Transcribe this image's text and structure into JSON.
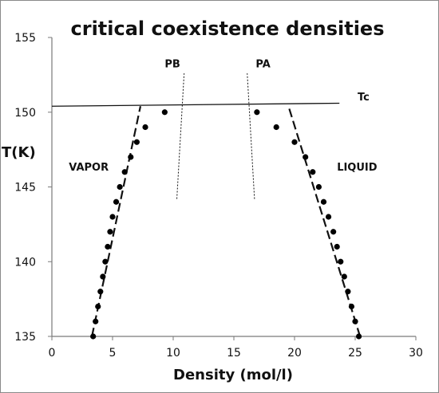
{
  "chart_data": {
    "type": "scatter",
    "title": "critical coexistence densities",
    "xlabel": "Density (mol/l)",
    "ylabel": "T(K)",
    "xlim": [
      0,
      30
    ],
    "ylim": [
      135,
      155
    ],
    "xticks": [
      0,
      5,
      10,
      15,
      20,
      25,
      30
    ],
    "yticks": [
      135,
      140,
      145,
      150,
      155
    ],
    "grid": false,
    "marker_color": "#000000",
    "series": [
      {
        "points": [
          [
            3.4,
            135
          ],
          [
            3.6,
            136
          ],
          [
            3.8,
            137
          ],
          [
            4.0,
            138
          ],
          [
            4.2,
            139
          ],
          [
            4.4,
            140
          ],
          [
            4.6,
            141
          ],
          [
            4.8,
            142
          ],
          [
            5.0,
            143
          ],
          [
            5.3,
            144
          ],
          [
            5.6,
            145
          ],
          [
            6.0,
            146
          ],
          [
            6.5,
            147
          ],
          [
            7.0,
            148
          ],
          [
            7.7,
            149
          ],
          [
            9.3,
            150
          ]
        ]
      },
      {
        "points": [
          [
            25.3,
            135
          ],
          [
            25.0,
            136
          ],
          [
            24.7,
            137
          ],
          [
            24.4,
            138
          ],
          [
            24.1,
            139
          ],
          [
            23.8,
            140
          ],
          [
            23.5,
            141
          ],
          [
            23.2,
            142
          ],
          [
            22.8,
            143
          ],
          [
            22.4,
            144
          ],
          [
            22.0,
            145
          ],
          [
            21.5,
            146
          ],
          [
            20.9,
            147
          ],
          [
            20.0,
            148
          ],
          [
            18.5,
            149
          ],
          [
            16.9,
            150
          ]
        ]
      }
    ],
    "lines": [
      {
        "label": "",
        "style": "dashed",
        "x": [
          3.3,
          7.3
        ],
        "y": [
          135,
          150.4
        ]
      },
      {
        "label": "",
        "style": "dashed",
        "x": [
          25.4,
          19.5
        ],
        "y": [
          135,
          150.4
        ]
      },
      {
        "label": "PB",
        "style": "dotted",
        "x": [
          10.3,
          10.9
        ],
        "y": [
          144.2,
          152.6
        ]
      },
      {
        "label": "PA",
        "style": "dotted",
        "x": [
          16.7,
          16.1
        ],
        "y": [
          144.2,
          152.6
        ]
      },
      {
        "label": "Tc",
        "style": "solid",
        "x": [
          0,
          23.7
        ],
        "y": [
          150.4,
          150.6
        ]
      }
    ],
    "annotations": [
      {
        "text": "PB",
        "x": 9.3,
        "y": 153.0
      },
      {
        "text": "PA",
        "x": 16.8,
        "y": 153.0
      },
      {
        "text": "Tc",
        "x": 25.2,
        "y": 150.8
      },
      {
        "text": "VAPOR",
        "x": 1.4,
        "y": 146.1
      },
      {
        "text": "LIQUID",
        "x": 23.5,
        "y": 146.1
      }
    ]
  }
}
